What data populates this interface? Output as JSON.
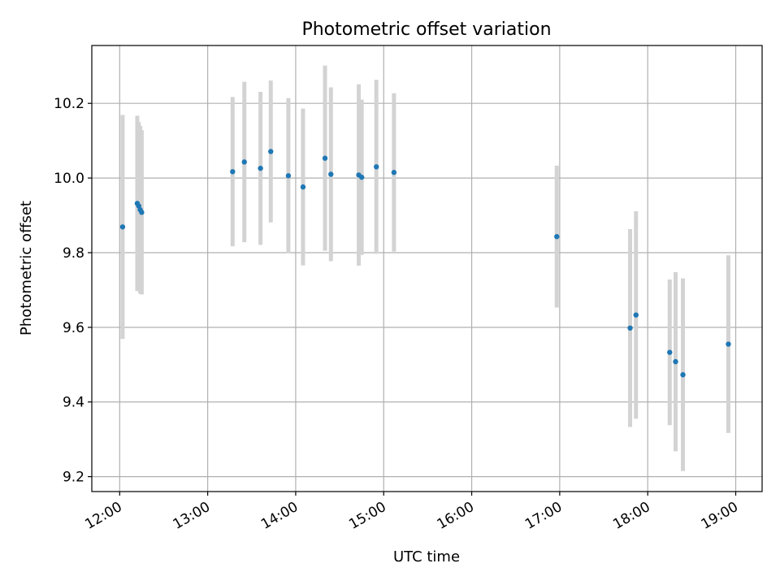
{
  "chart_data": {
    "type": "scatter",
    "title": "Photometric offset variation",
    "xlabel": "UTC time",
    "ylabel": "Photometric offset",
    "x_unit": "UTC time (HH:MM)",
    "xlim": [
      "11:41",
      "19:18"
    ],
    "ylim": [
      9.16,
      10.355
    ],
    "grid": true,
    "xticks": [
      "12:00",
      "13:00",
      "14:00",
      "15:00",
      "16:00",
      "17:00",
      "18:00",
      "19:00"
    ],
    "yticks": [
      "9.2",
      "9.4",
      "9.6",
      "9.8",
      "10.0",
      "10.2"
    ],
    "colors": {
      "point": "#1f77b4",
      "errorbar": "#d3d3d3",
      "grid": "#b0b0b0"
    },
    "points": [
      {
        "x": "12:02",
        "y": 9.869,
        "err": 0.3
      },
      {
        "x": "12:12",
        "y": 9.932,
        "err": 0.235
      },
      {
        "x": "12:13",
        "y": 9.925,
        "err": 0.225
      },
      {
        "x": "12:14",
        "y": 9.915,
        "err": 0.225
      },
      {
        "x": "12:15",
        "y": 9.908,
        "err": 0.22
      },
      {
        "x": "13:17",
        "y": 10.017,
        "err": 0.2
      },
      {
        "x": "13:25",
        "y": 10.043,
        "err": 0.215
      },
      {
        "x": "13:36",
        "y": 10.026,
        "err": 0.205
      },
      {
        "x": "13:43",
        "y": 10.071,
        "err": 0.19
      },
      {
        "x": "13:55",
        "y": 10.006,
        "err": 0.208
      },
      {
        "x": "14:05",
        "y": 9.976,
        "err": 0.21
      },
      {
        "x": "14:20",
        "y": 10.053,
        "err": 0.248
      },
      {
        "x": "14:24",
        "y": 10.01,
        "err": 0.233
      },
      {
        "x": "14:43",
        "y": 10.008,
        "err": 0.243
      },
      {
        "x": "14:45",
        "y": 10.002,
        "err": 0.208
      },
      {
        "x": "14:55",
        "y": 10.03,
        "err": 0.233
      },
      {
        "x": "15:07",
        "y": 10.015,
        "err": 0.212
      },
      {
        "x": "16:58",
        "y": 9.843,
        "err": 0.19
      },
      {
        "x": "17:48",
        "y": 9.598,
        "err": 0.265
      },
      {
        "x": "17:52",
        "y": 9.633,
        "err": 0.278
      },
      {
        "x": "18:15",
        "y": 9.533,
        "err": 0.195
      },
      {
        "x": "18:19",
        "y": 9.508,
        "err": 0.24
      },
      {
        "x": "18:24",
        "y": 9.473,
        "err": 0.258
      },
      {
        "x": "18:55",
        "y": 9.555,
        "err": 0.238
      }
    ]
  }
}
